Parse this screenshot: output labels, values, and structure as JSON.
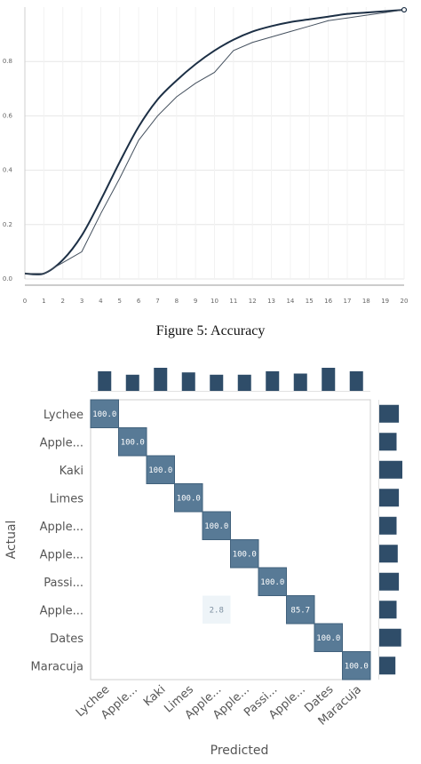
{
  "figure_caption": "Figure 5: Accuracy",
  "chart_data": [
    {
      "type": "line",
      "title": "",
      "xlabel": "",
      "ylabel": "",
      "x": [
        0,
        1,
        2,
        3,
        4,
        5,
        6,
        7,
        8,
        9,
        10,
        11,
        12,
        13,
        14,
        15,
        16,
        17,
        18,
        19,
        20
      ],
      "xtick_labels": [
        "0",
        "1",
        "2",
        "3",
        "4",
        "5",
        "6",
        "7",
        "8",
        "9",
        "10",
        "11",
        "12",
        "13",
        "14",
        "15",
        "16",
        "17",
        "18",
        "19",
        "20"
      ],
      "ylim": [
        0,
        1.0
      ],
      "yticks": [
        0.0,
        0.2,
        0.4,
        0.6,
        0.8
      ],
      "ytick_labels": [
        "0.0",
        "0.2",
        "0.4",
        "0.6",
        "0.8"
      ],
      "series": [
        {
          "values": [
            0.02,
            0.02,
            0.07,
            0.16,
            0.29,
            0.43,
            0.56,
            0.66,
            0.73,
            0.79,
            0.84,
            0.88,
            0.91,
            0.93,
            0.945,
            0.955,
            0.965,
            0.975,
            0.98,
            0.985,
            0.99
          ]
        },
        {
          "values": [
            0.02,
            0.02,
            0.06,
            0.1,
            0.24,
            0.37,
            0.51,
            0.6,
            0.67,
            0.72,
            0.76,
            0.84,
            0.87,
            0.89,
            0.91,
            0.93,
            0.95,
            0.96,
            0.97,
            0.98,
            0.99
          ]
        }
      ],
      "colors": {
        "line1": "#1c2f45",
        "line2": "#44505e"
      }
    },
    {
      "type": "heatmap",
      "xlabel": "Predicted",
      "ylabel": "Actual",
      "rows": [
        "Lychee",
        "Apple...",
        "Kaki",
        "Limes",
        "Apple...",
        "Apple...",
        "Passi...",
        "Apple...",
        "Dates",
        "Maracuja"
      ],
      "columns": [
        "Lychee",
        "Apple...",
        "Kaki",
        "Limes",
        "Apple...",
        "Apple...",
        "Passi...",
        "Apple...",
        "Dates",
        "Maracuja"
      ],
      "cells": [
        {
          "row": 0,
          "col": 0,
          "value": "100.0"
        },
        {
          "row": 1,
          "col": 1,
          "value": "100.0"
        },
        {
          "row": 2,
          "col": 2,
          "value": "100.0"
        },
        {
          "row": 3,
          "col": 3,
          "value": "100.0"
        },
        {
          "row": 4,
          "col": 4,
          "value": "100.0"
        },
        {
          "row": 5,
          "col": 5,
          "value": "100.0"
        },
        {
          "row": 6,
          "col": 6,
          "value": "100.0"
        },
        {
          "row": 7,
          "col": 4,
          "value": "2.8"
        },
        {
          "row": 7,
          "col": 7,
          "value": "85.7"
        },
        {
          "row": 8,
          "col": 8,
          "value": "100.0"
        },
        {
          "row": 9,
          "col": 9,
          "value": "100.0"
        }
      ],
      "column_totals": [
        0.85,
        0.7,
        1.0,
        0.8,
        0.7,
        0.7,
        0.85,
        0.75,
        1.0,
        0.85
      ],
      "row_totals": [
        0.85,
        0.75,
        1.0,
        0.85,
        0.75,
        0.8,
        0.85,
        0.75,
        0.95,
        0.7
      ],
      "colors": {
        "strong": "#587a96",
        "light": "#eef4f8",
        "bar": "#2f4d69"
      }
    }
  ]
}
